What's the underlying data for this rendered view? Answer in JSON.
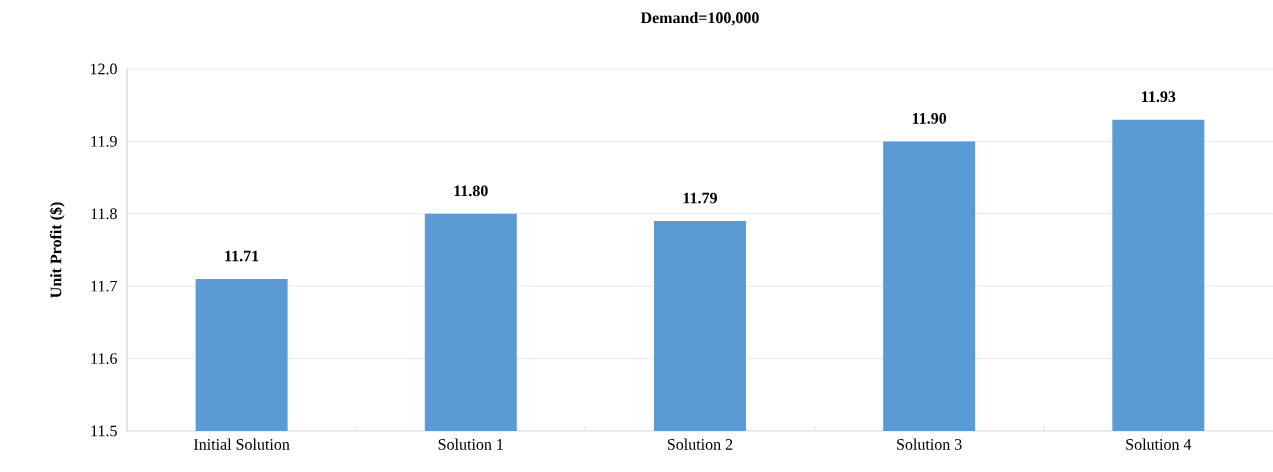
{
  "chart_data": {
    "type": "bar",
    "title": "Demand=100,000",
    "ylabel": "Unit Profit ($)",
    "categories": [
      "Initial Solution",
      "Solution 1",
      "Solution 2",
      "Solution 3",
      "Solution 4"
    ],
    "values": [
      11.71,
      11.8,
      11.79,
      11.9,
      11.93
    ],
    "value_labels": [
      "11.71",
      "11.80",
      "11.79",
      "11.90",
      "11.93"
    ],
    "color": "#5b9bd5",
    "ylim": [
      11.5,
      12.0
    ],
    "yticks": [
      {
        "value": 11.5,
        "label": "11.5"
      },
      {
        "value": 11.6,
        "label": "11.6"
      },
      {
        "value": 11.7,
        "label": "11.7"
      },
      {
        "value": 11.8,
        "label": "11.8"
      },
      {
        "value": 11.9,
        "label": "11.9"
      },
      {
        "value": 12.0,
        "label": "12.0"
      }
    ],
    "grid": "y"
  }
}
